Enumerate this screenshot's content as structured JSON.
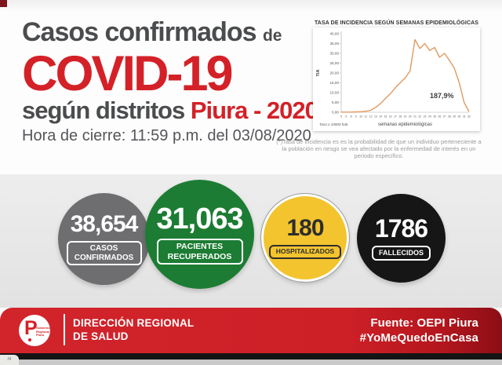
{
  "header": {
    "title_line1": "Casos confirmados",
    "title_line1_suffix": "de",
    "title_line2": "COVID-19",
    "title_line3_gray": "según distritos",
    "title_line3_red": "Piura - 2020",
    "closing_time": "Hora de cierre: 11:59 p.m. del 03/08/2020",
    "accent_red": "#d42127",
    "title_gray": "#4b4c4e"
  },
  "chart_data": {
    "type": "line",
    "title": "TASA DE INCIDENCIA SEGÚN SEMANAS EPIDEMIOLÓGICAS",
    "xlabel": "semanas epidemiológicas",
    "ylabel": "TIA",
    "x": [
      "5",
      "6",
      "8",
      "9",
      "10",
      "11",
      "12",
      "13",
      "14",
      "15",
      "16",
      "17",
      "18",
      "19",
      "20",
      "21",
      "22",
      "23",
      "24",
      "25",
      "26",
      "27",
      "28",
      "29",
      "30",
      "31",
      "32"
    ],
    "series": [
      {
        "name": "TIA",
        "color": "#e09a60",
        "values": [
          0.1,
          0.1,
          0.1,
          0.2,
          0.3,
          0.5,
          1.0,
          2.5,
          4.5,
          7.0,
          9.5,
          12.5,
          15.0,
          17.5,
          21.0,
          37.0,
          32.5,
          35.0,
          31.5,
          33.0,
          28.0,
          30.0,
          26.5,
          22.5,
          15.0,
          5.0,
          0.3
        ]
      }
    ],
    "ylim": [
      0,
      40
    ],
    "ytick_labels": [
      "0,00",
      "5,00",
      "10,00",
      "15,00",
      "20,00",
      "25,00",
      "30,00",
      "35,00",
      "40,00"
    ],
    "annotation": {
      "text": "187,9%"
    },
    "source_note": "Tasa x 10000 hab.",
    "grid": false,
    "legend": "none"
  },
  "footnote": "(*)Tasa de incidencia es es la probabilidad de que un individuo perteneciente a la población en riesgo se vea afectado por la enfermedad de interés en un periodo específico.",
  "stats": [
    {
      "value": "38,654",
      "label": "CASOS CONFIRMADOS",
      "color": "#6e6e71",
      "text_color": "#ffffff"
    },
    {
      "value": "31,063",
      "label": "PACIENTES RECUPERADOS",
      "color": "#1d7c33",
      "text_color": "#ffffff"
    },
    {
      "value": "180",
      "label": "HOSPITALIZADOS",
      "color": "#f3c42e",
      "text_color": "#2e2e2e"
    },
    {
      "value": "1786",
      "label": "FALLECIDOS",
      "color": "#161616",
      "text_color": "#ffffff"
    }
  ],
  "footer": {
    "logo_letter": "P",
    "logo_sub_line1": "Gobierno",
    "logo_sub_line2": "Regional",
    "logo_sub_line3": "Piura",
    "org_line1": "DIRECCIÓN REGIONAL",
    "org_line2": "DE SALUD",
    "source": "Fuente: OEPI Piura",
    "hashtag": "#YoMeQuedoEnCasa",
    "bar_color": "#cc1f26"
  },
  "player": {
    "tab_text": "/#"
  }
}
